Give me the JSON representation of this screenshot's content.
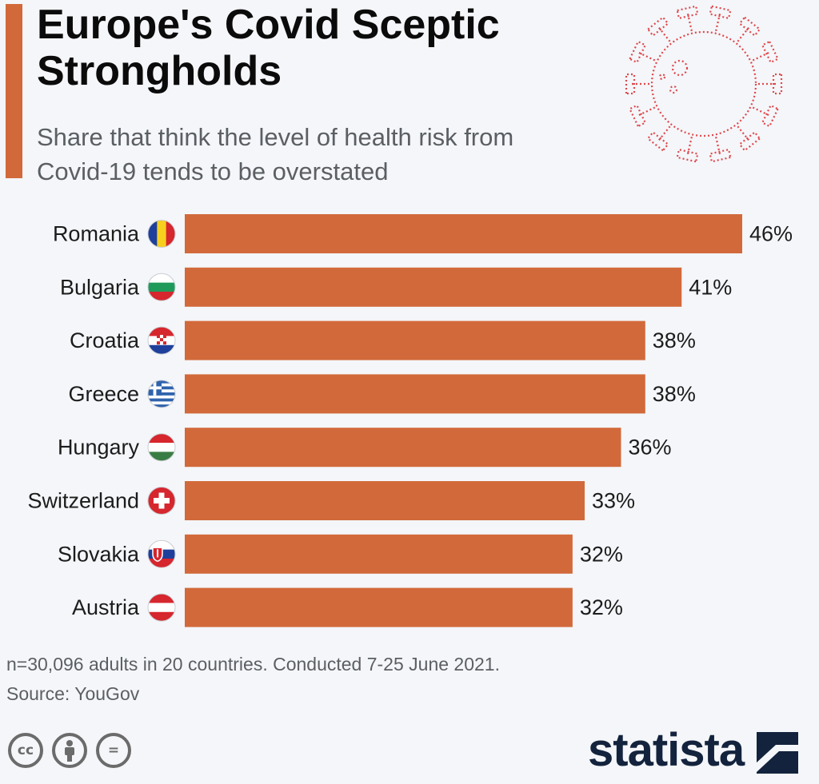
{
  "header": {
    "title": "Europe's Covid Sceptic\nStrongholds",
    "subtitle": "Share that think the level of health risk from Covid-19 tends to be overstated"
  },
  "colors": {
    "accent": "#d2693a",
    "bar": "#d2693a",
    "brand": "#13233d",
    "background": "#f4f6f9"
  },
  "chart_data": {
    "type": "bar",
    "orientation": "horizontal",
    "categories": [
      "Romania",
      "Bulgaria",
      "Croatia",
      "Greece",
      "Hungary",
      "Switzerland",
      "Slovakia",
      "Austria"
    ],
    "values": [
      46,
      41,
      38,
      38,
      36,
      33,
      32,
      32
    ],
    "value_labels": [
      "46%",
      "41%",
      "38%",
      "38%",
      "36%",
      "33%",
      "32%",
      "32%"
    ],
    "unit": "%",
    "flags": [
      "romania-flag-icon",
      "bulgaria-flag-icon",
      "croatia-flag-icon",
      "greece-flag-icon",
      "hungary-flag-icon",
      "switzerland-flag-icon",
      "slovakia-flag-icon",
      "austria-flag-icon"
    ],
    "grid": false,
    "legend": "none"
  },
  "footer": {
    "note": "n=30,096 adults in 20 countries. Conducted 7-25 June 2021.",
    "source": "Source: YouGov",
    "license_icons": [
      "cc-icon",
      "attribution-icon",
      "no-derivatives-icon"
    ],
    "license_labels": [
      "cc",
      "="
    ],
    "brand": "statista"
  }
}
